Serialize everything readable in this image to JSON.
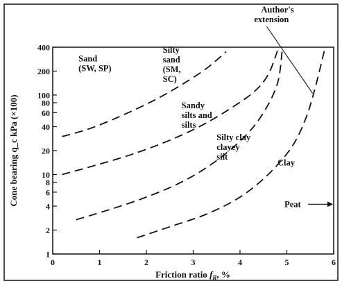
{
  "chart_data": {
    "type": "line",
    "xlabel": "Friction ratio  f_R, %",
    "ylabel": "Cone bearing q_c kPa (×100)",
    "xlim": [
      0,
      6
    ],
    "ylim": [
      1,
      400
    ],
    "y_scale": "log",
    "grid": false,
    "x_ticks": [
      "0",
      "1",
      "2",
      "3",
      "4",
      "5",
      "6"
    ],
    "y_ticks": [
      {
        "value": 1,
        "label": "1"
      },
      {
        "value": 2,
        "label": "2"
      },
      {
        "value": 4,
        "label": "4"
      },
      {
        "value": 6,
        "label": "6"
      },
      {
        "value": 8,
        "label": "8"
      },
      {
        "value": 10,
        "label": "10"
      },
      {
        "value": 20,
        "label": "20"
      },
      {
        "value": 40,
        "label": "40"
      },
      {
        "value": 60,
        "label": "60"
      },
      {
        "value": 80,
        "label": "80"
      },
      {
        "value": 100,
        "label": "100"
      },
      {
        "value": 200,
        "label": "200"
      },
      {
        "value": 400,
        "label": "400"
      }
    ],
    "series": [
      {
        "x": [
          0.2,
          0.8,
          1.5,
          2.2,
          2.8,
          3.3,
          3.7
        ],
        "y": [
          30,
          38,
          56,
          88,
          140,
          220,
          350
        ]
      },
      {
        "x": [
          0.2,
          0.9,
          1.7,
          2.5,
          3.2,
          3.8,
          4.3,
          4.6,
          4.8
        ],
        "y": [
          10,
          13,
          18,
          27,
          42,
          68,
          110,
          180,
          360
        ]
      },
      {
        "x": [
          0.5,
          1.2,
          2.0,
          2.8,
          3.5,
          4.1,
          4.5,
          4.8,
          4.9
        ],
        "y": [
          2.7,
          3.6,
          5.2,
          8.3,
          15,
          30,
          60,
          140,
          360
        ]
      },
      {
        "x": [
          1.8,
          2.5,
          3.3,
          4.0,
          4.6,
          5.1,
          5.4,
          5.6,
          5.8
        ],
        "y": [
          1.6,
          2.2,
          3.2,
          5.2,
          10,
          22,
          50,
          120,
          360
        ]
      }
    ],
    "region_labels": [
      {
        "lines": [
          "Sand",
          "(SW, SP)"
        ],
        "x": 0.55,
        "y": 265
      },
      {
        "lines": [
          "Silty",
          "sand",
          "(SM,",
          "SC)"
        ],
        "x": 2.35,
        "y": 340
      },
      {
        "lines": [
          "Sandy",
          "silts and",
          "silts"
        ],
        "x": 2.75,
        "y": 68
      },
      {
        "lines": [
          "Silty clay",
          "clayey",
          "silt"
        ],
        "x": 3.5,
        "y": 27
      },
      {
        "lines": [
          "Clay"
        ],
        "x": 4.8,
        "y": 13
      },
      {
        "lines": [
          "Peat"
        ],
        "x": 4.95,
        "y": 3.9
      }
    ],
    "annotations": [
      {
        "lines": [
          "Author's",
          "extension"
        ],
        "x": 4.45,
        "y": 560,
        "arrow_to": {
          "x": 5.55,
          "y": 105
        }
      }
    ]
  }
}
